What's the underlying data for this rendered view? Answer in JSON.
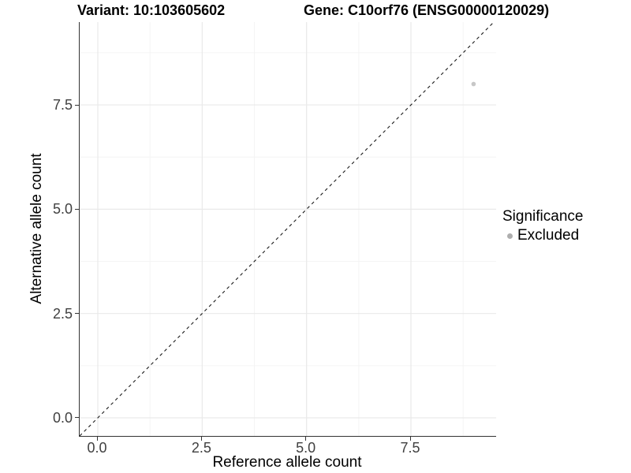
{
  "titles": {
    "left": "Variant: 10:103605602",
    "right": "Gene: C10orf76 (ENSG00000120029)"
  },
  "chart_data": {
    "type": "scatter",
    "title": "Variant: 10:103605602 — Gene: C10orf76 (ENSG00000120029)",
    "xlabel": "Reference allele count",
    "ylabel": "Alternative allele count",
    "xlim": [
      -0.435,
      9.54
    ],
    "ylim": [
      -0.435,
      9.485
    ],
    "x_ticks": [
      {
        "value": 0,
        "label": "0.0"
      },
      {
        "value": 2.5,
        "label": "2.5"
      },
      {
        "value": 5,
        "label": "5.0"
      },
      {
        "value": 7.5,
        "label": "7.5"
      }
    ],
    "y_ticks": [
      {
        "value": 0,
        "label": "0.0"
      },
      {
        "value": 2.5,
        "label": "2.5"
      },
      {
        "value": 5,
        "label": "5.0"
      },
      {
        "value": 7.5,
        "label": "7.5"
      }
    ],
    "x_minor": [
      1.25,
      3.75,
      6.25,
      8.75
    ],
    "y_minor": [
      1.25,
      3.75,
      6.25,
      8.75
    ],
    "grid": "major and minor gridlines, very light gray, on white panel",
    "series": [
      {
        "name": "Excluded",
        "color": "#c7c7c7",
        "legend_color": "#aeaeae",
        "points": [
          [
            9,
            8
          ]
        ]
      }
    ],
    "annotations": [
      {
        "type": "abline",
        "slope": 1,
        "intercept": 0,
        "style": "dashed",
        "color": "#1a1a1a"
      }
    ],
    "legend": {
      "title": "Significance",
      "entries": [
        "Excluded"
      ],
      "position": "right-center"
    }
  },
  "style": {
    "grid_major": "#e9e9e9",
    "grid_minor": "#f4f4f4",
    "axis_line": "#333333",
    "tick_text": "#404040"
  }
}
